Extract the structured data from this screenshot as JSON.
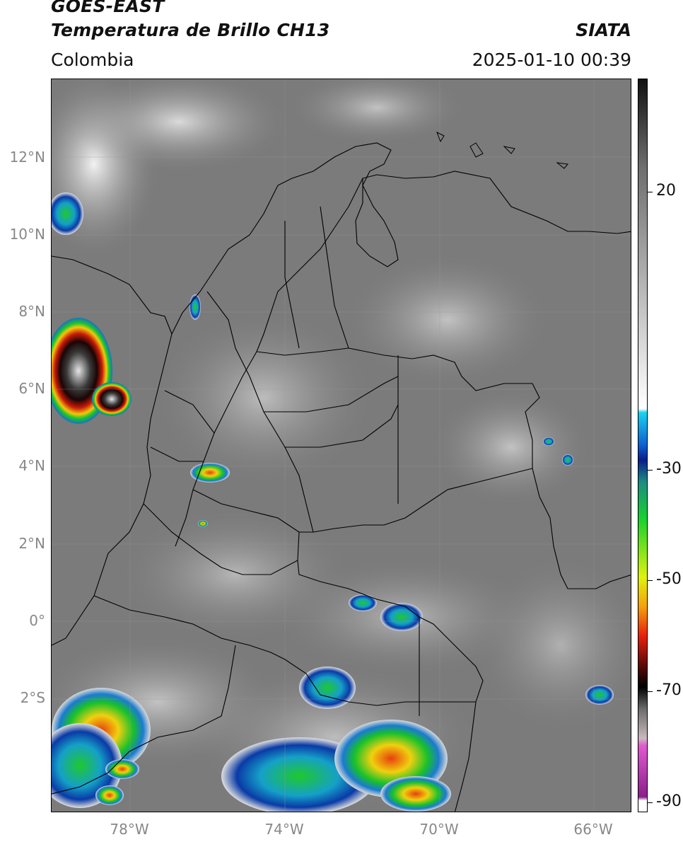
{
  "header": {
    "satellite": "GOES-EAST",
    "product": "Temperatura de Brillo CH13",
    "brand": "SIATA",
    "region": "Colombia",
    "datetime": "2025-01-10 00:39"
  },
  "axes": {
    "lat_labels": [
      "12°N",
      "10°N",
      "8°N",
      "6°N",
      "4°N",
      "2°N",
      "0°",
      "2°S"
    ],
    "lon_labels": [
      "78°W",
      "74°W",
      "70°W",
      "66°W"
    ]
  },
  "colorbar": {
    "labels": [
      "20",
      "-30",
      "-50",
      "-70",
      "-90"
    ],
    "stops": [
      {
        "c": "#111111",
        "p": 0
      },
      {
        "c": "#6e6e6e",
        "p": 12
      },
      {
        "c": "#bdbdbd",
        "p": 30
      },
      {
        "c": "#ffffff",
        "p": 45
      },
      {
        "c": "#1ad3f0",
        "p": 45.5
      },
      {
        "c": "#0f5ecf",
        "p": 50
      },
      {
        "c": "#0a1d8a",
        "p": 52
      },
      {
        "c": "#1d8c82",
        "p": 55
      },
      {
        "c": "#16d12e",
        "p": 60
      },
      {
        "c": "#dff20d",
        "p": 68
      },
      {
        "c": "#f5a10b",
        "p": 72
      },
      {
        "c": "#e8200c",
        "p": 76
      },
      {
        "c": "#5c0b07",
        "p": 80
      },
      {
        "c": "#000000",
        "p": 83
      },
      {
        "c": "#6b6b6b",
        "p": 86
      },
      {
        "c": "#c9b9bd",
        "p": 90
      },
      {
        "c": "#e05ad0",
        "p": 91
      },
      {
        "c": "#8a1f8a",
        "p": 98
      },
      {
        "c": "#ffffff",
        "p": 98.5
      }
    ]
  },
  "colors": {
    "background_gray": "#7d7d7d",
    "land_gray": "#858585",
    "border": "#000000"
  }
}
